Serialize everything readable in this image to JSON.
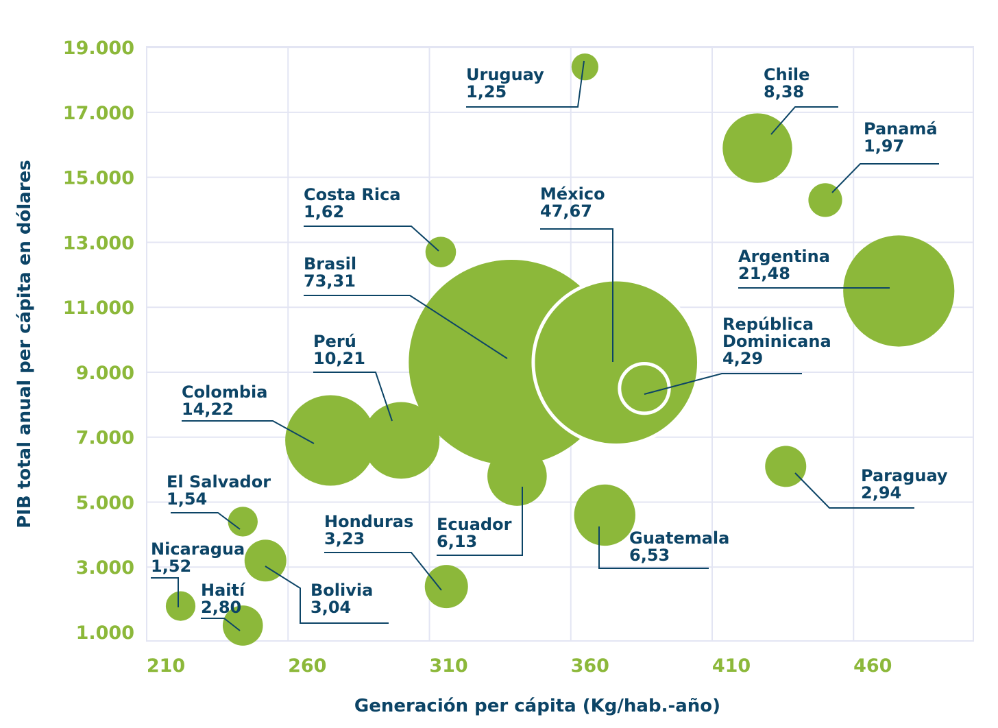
{
  "chart_data": {
    "type": "bubble",
    "xlabel": "Generación per cápita  (Kg/hab.-año)",
    "ylabel": "PIB total anual per cápita en dólares",
    "xlim": [
      210,
      495
    ],
    "ylim": [
      1000,
      19000
    ],
    "x_ticks": [
      210,
      260,
      310,
      360,
      410,
      460
    ],
    "x_tick_labels": [
      "210",
      "260",
      "310",
      "360",
      "410",
      "460"
    ],
    "y_ticks": [
      1000,
      3000,
      5000,
      7000,
      9000,
      11000,
      13000,
      15000,
      17000,
      19000
    ],
    "y_tick_labels": [
      "1.000",
      "3.000",
      "5.000",
      "7.000",
      "9.000",
      "11.000",
      "13.000",
      "15.000",
      "17.000",
      "19.000"
    ],
    "grid": true,
    "bubble_color": "#8cb83a",
    "label_color": "#0c4466",
    "points": [
      {
        "country": "Uruguay",
        "value_label": "1,25",
        "x": 365,
        "y": 18400,
        "size": 1.25
      },
      {
        "country": "Chile",
        "value_label": "8,38",
        "x": 426,
        "y": 15900,
        "size": 8.38
      },
      {
        "country": "Panamá",
        "value_label": "1,97",
        "x": 450,
        "y": 14300,
        "size": 1.97
      },
      {
        "country": "Costa Rica",
        "value_label": "1,62",
        "x": 314,
        "y": 12700,
        "size": 1.62
      },
      {
        "country": "México",
        "value_label": "47,67",
        "x": 376,
        "y": 9300,
        "size": 47.67
      },
      {
        "country": "Argentina",
        "value_label": "21,48",
        "x": 476,
        "y": 11500,
        "size": 21.48
      },
      {
        "country": "Brasil",
        "value_label": "73,31",
        "x": 339,
        "y": 9300,
        "size": 73.31
      },
      {
        "country": "República Dominicana",
        "value_label": "4,29",
        "x": 386,
        "y": 8500,
        "size": 4.29
      },
      {
        "country": "Perú",
        "value_label": "10,21",
        "x": 300,
        "y": 6900,
        "size": 10.21
      },
      {
        "country": "Colombia",
        "value_label": "14,22",
        "x": 275,
        "y": 6900,
        "size": 14.22
      },
      {
        "country": "Ecuador",
        "value_label": "6,13",
        "x": 341,
        "y": 5800,
        "size": 6.13
      },
      {
        "country": "Paraguay",
        "value_label": "2,94",
        "x": 436,
        "y": 6100,
        "size": 2.94
      },
      {
        "country": "Guatemala",
        "value_label": "6,53",
        "x": 372,
        "y": 4600,
        "size": 6.53
      },
      {
        "country": "El Salvador",
        "value_label": "1,54",
        "x": 244,
        "y": 4400,
        "size": 1.54
      },
      {
        "country": "Honduras",
        "value_label": "3,23",
        "x": 316,
        "y": 2400,
        "size": 3.23
      },
      {
        "country": "Bolivia",
        "value_label": "3,04",
        "x": 252,
        "y": 3200,
        "size": 3.04
      },
      {
        "country": "Nicaragua",
        "value_label": "1,52",
        "x": 222,
        "y": 1800,
        "size": 1.52
      },
      {
        "country": "Haití",
        "value_label": "2,80",
        "x": 244,
        "y": 1200,
        "size": 2.8
      }
    ]
  }
}
